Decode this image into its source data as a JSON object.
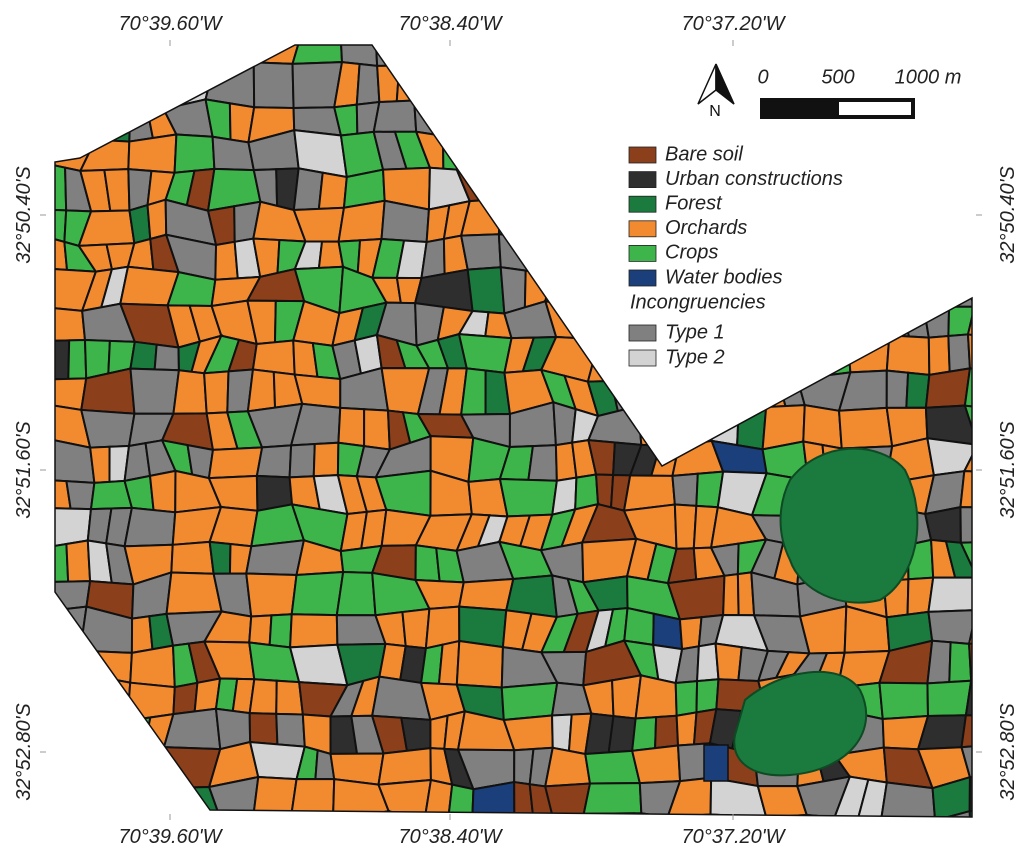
{
  "coordinates": {
    "top": [
      "70°39.60'W",
      "70°38.40'W",
      "70°37.20'W"
    ],
    "bottom": [
      "70°39.60'W",
      "70°38.40'W",
      "70°37.20'W"
    ],
    "left": [
      "32°50.40'S",
      "32°51.60'S",
      "32°52.80'S"
    ],
    "right": [
      "32°50.40'S",
      "32°51.60'S",
      "32°52.80'S"
    ]
  },
  "north_arrow": {
    "label": "N"
  },
  "scale_bar": {
    "labels": [
      "0",
      "500",
      "1000 m"
    ]
  },
  "legend": {
    "classes": [
      {
        "label": "Bare soil",
        "color": "#8b3f1a"
      },
      {
        "label": "Urban constructions",
        "color": "#2e2e2e"
      },
      {
        "label": "Forest",
        "color": "#1b7a3e"
      },
      {
        "label": "Orchards",
        "color": "#f28a30"
      },
      {
        "label": "Crops",
        "color": "#3db54a"
      },
      {
        "label": "Water bodies",
        "color": "#1a3f7a"
      }
    ],
    "incongruencies_title": "Incongruencies",
    "incongruencies": [
      {
        "label": "Type 1",
        "color": "#808080"
      },
      {
        "label": "Type 2",
        "color": "#d3d3d3"
      }
    ]
  }
}
